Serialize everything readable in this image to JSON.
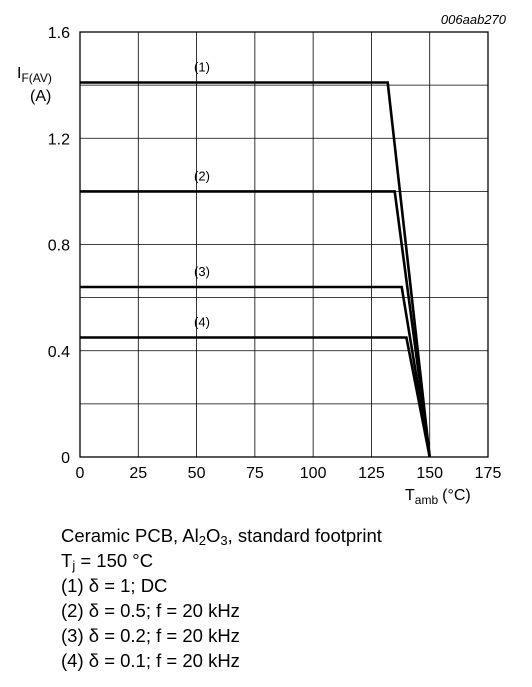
{
  "chart_data": {
    "type": "line",
    "figure_id": "006aab270",
    "ylabel": {
      "main": "I",
      "sub": "F(AV)",
      "unit": "(A)"
    },
    "xlabel": {
      "main": "T",
      "sub": "amb",
      "unit": "(°C)"
    },
    "xlim": [
      0,
      175
    ],
    "ylim": [
      0,
      1.6
    ],
    "x_ticks": [
      "0",
      "25",
      "50",
      "75",
      "100",
      "125",
      "150",
      "175"
    ],
    "y_ticks": [
      "0",
      "0.4",
      "0.8",
      "1.2",
      "1.6"
    ],
    "grid": true,
    "series": [
      {
        "name": "(1)",
        "x": [
          0,
          132,
          150
        ],
        "y": [
          1.41,
          1.41,
          0
        ]
      },
      {
        "name": "(2)",
        "x": [
          0,
          135,
          150
        ],
        "y": [
          1.0,
          1.0,
          0
        ]
      },
      {
        "name": "(3)",
        "x": [
          0,
          138,
          150
        ],
        "y": [
          0.64,
          0.64,
          0
        ]
      },
      {
        "name": "(4)",
        "x": [
          0,
          140,
          150
        ],
        "y": [
          0.45,
          0.45,
          0
        ]
      }
    ]
  },
  "caption": {
    "line1": {
      "pre": "Ceramic PCB, Al",
      "sub1": "2",
      "mid": "O",
      "sub2": "3",
      "post": ", standard footprint"
    },
    "line2": {
      "pre": "T",
      "sub": "j",
      "post": " = 150 °C"
    },
    "notes": [
      "(1) δ = 1; DC",
      "(2) δ = 0.5; f = 20 kHz",
      "(3) δ = 0.2; f = 20 kHz",
      "(4) δ = 0.1; f = 20 kHz"
    ]
  }
}
